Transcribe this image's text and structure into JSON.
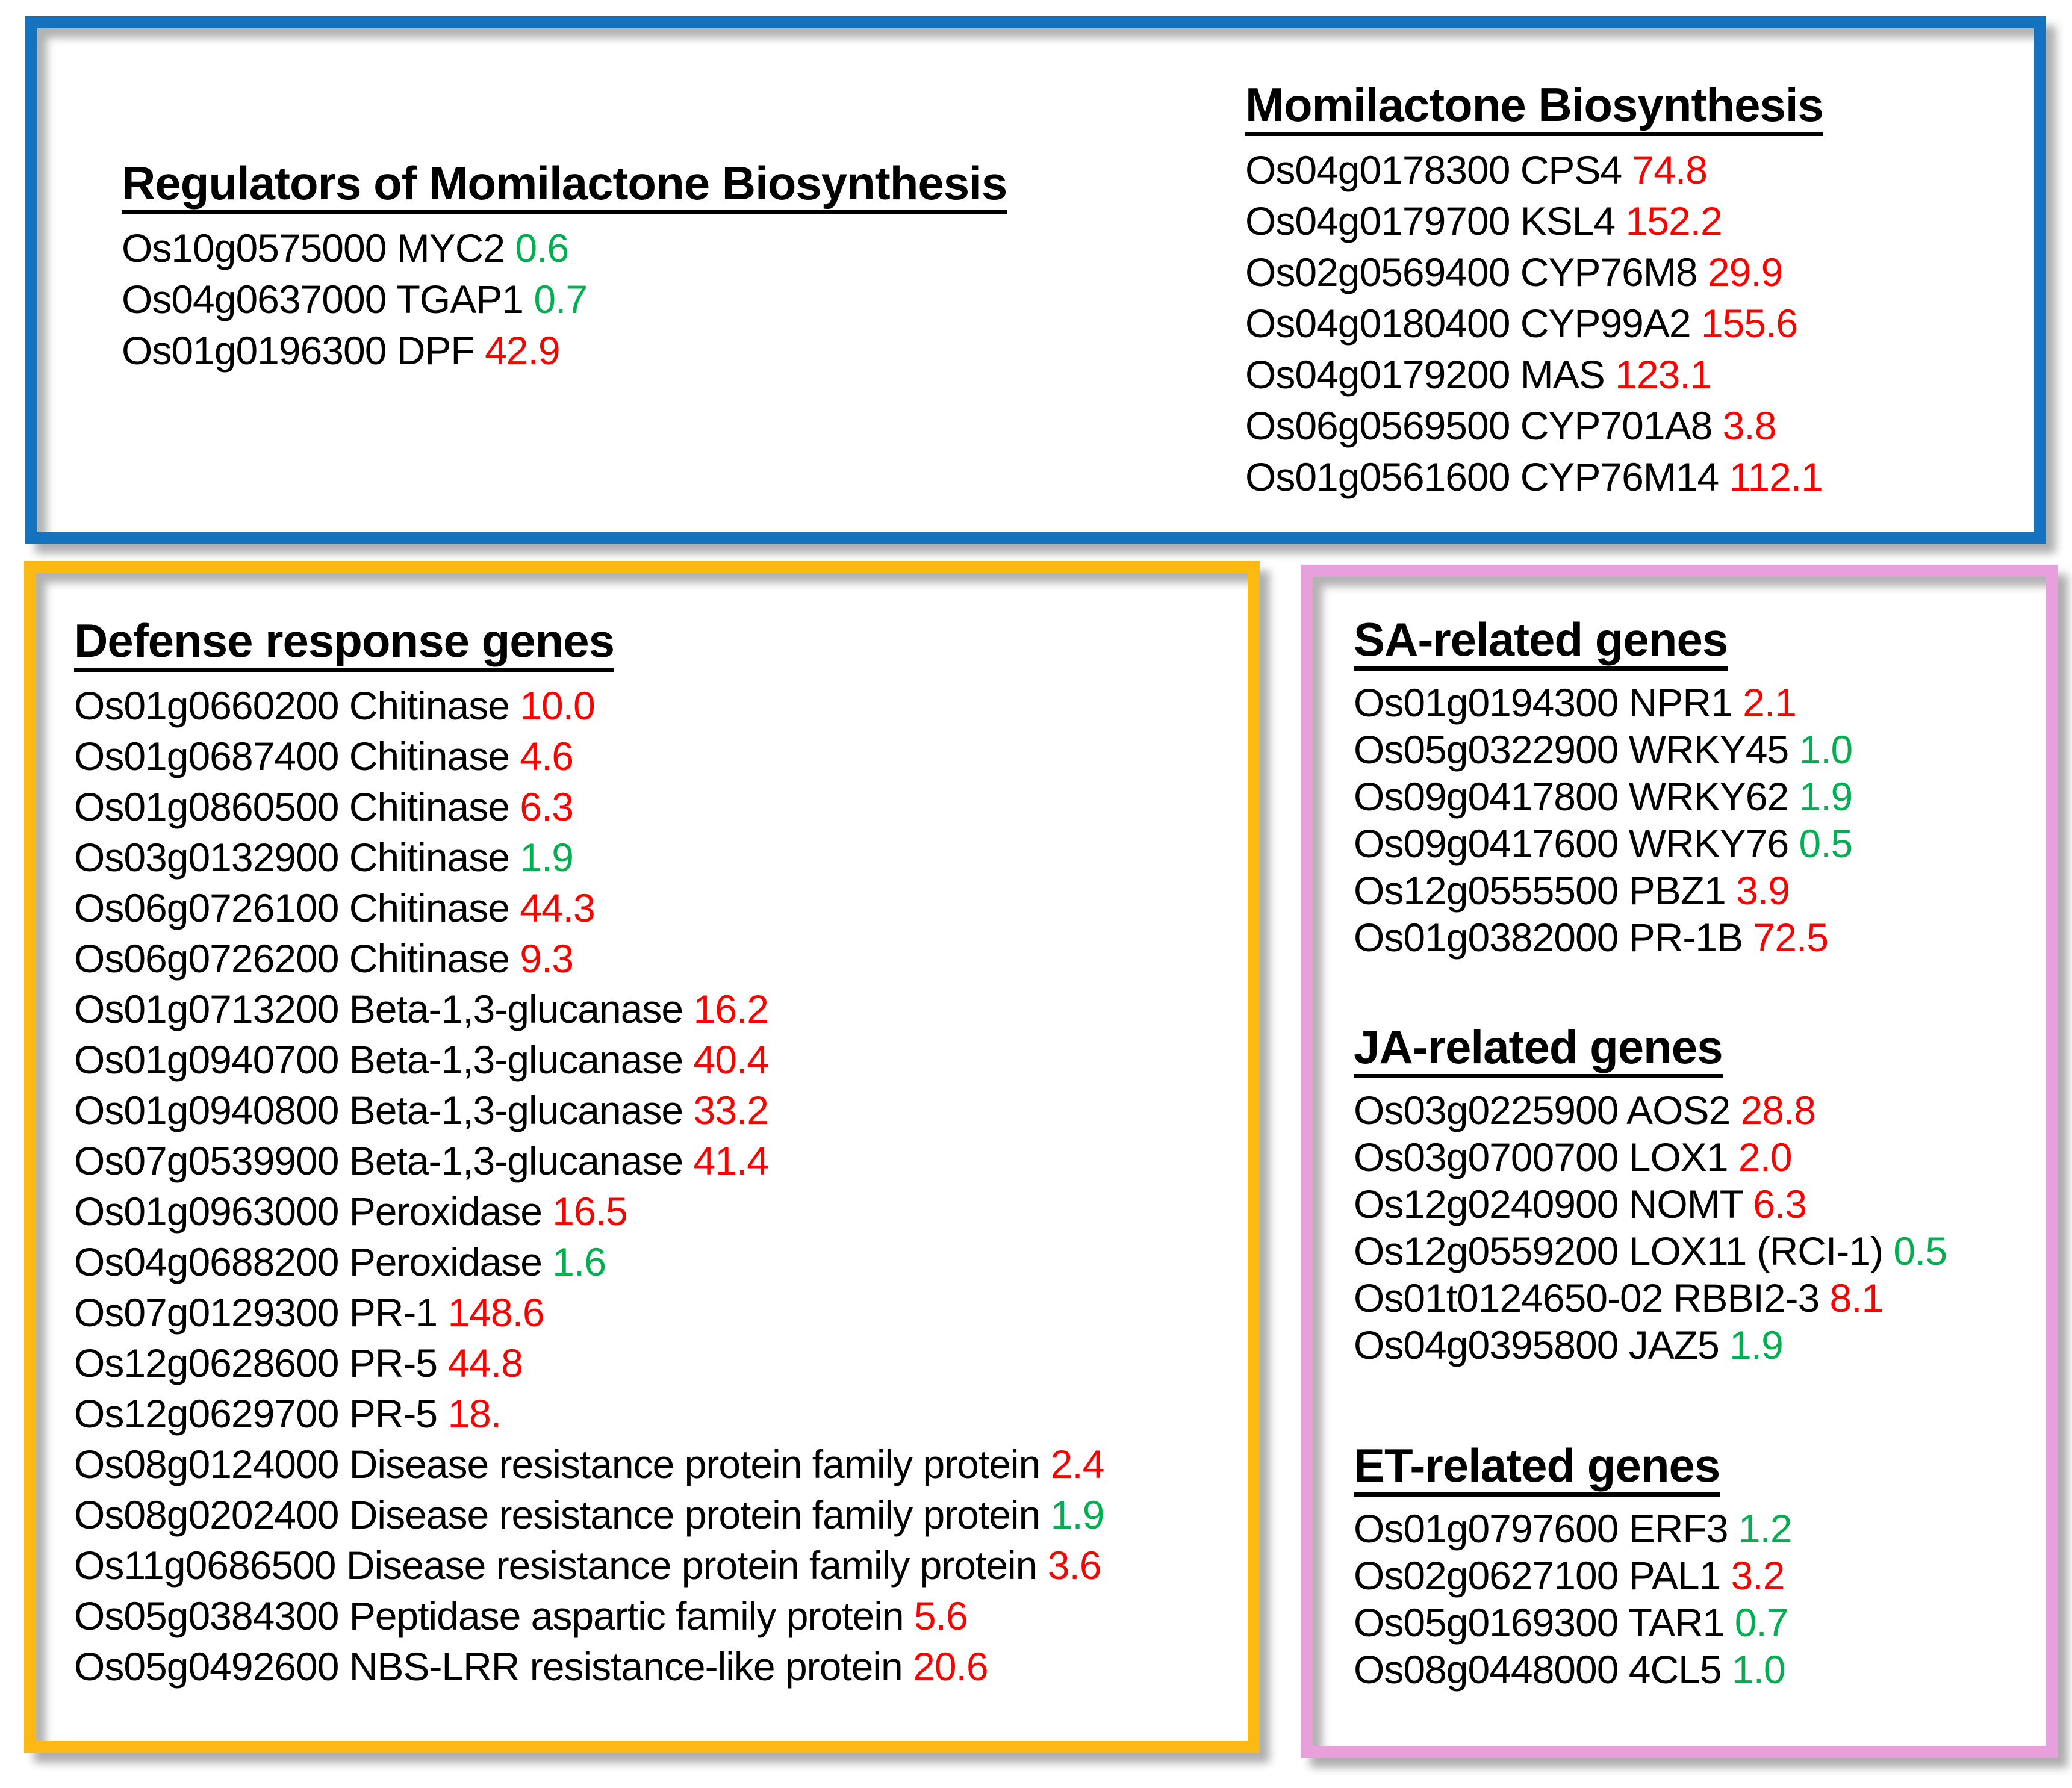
{
  "colors": {
    "up": "#FF0000",
    "down": "#00B050",
    "box-blue": "#1472BE",
    "box-orange": "#FDB913",
    "box-pink": "#E8A0DC"
  },
  "sections": {
    "regulators": {
      "title": "Regulators of Momilactone Biosynthesis",
      "genes": [
        {
          "id": "Os10g0575000",
          "name": "MYC2",
          "value": "0.6",
          "trend": "down"
        },
        {
          "id": "Os04g0637000",
          "name": "TGAP1",
          "value": "0.7",
          "trend": "down"
        },
        {
          "id": "Os01g0196300",
          "name": "DPF",
          "value": "42.9",
          "trend": "up"
        }
      ]
    },
    "biosynthesis": {
      "title": "Momilactone Biosynthesis",
      "genes": [
        {
          "id": "Os04g0178300",
          "name": "CPS4",
          "value": "74.8",
          "trend": "up"
        },
        {
          "id": "Os04g0179700",
          "name": "KSL4",
          "value": "152.2",
          "trend": "up"
        },
        {
          "id": "Os02g0569400",
          "name": "CYP76M8",
          "value": "29.9",
          "trend": "up"
        },
        {
          "id": "Os04g0180400",
          "name": "CYP99A2",
          "value": "155.6",
          "trend": "up"
        },
        {
          "id": "Os04g0179200",
          "name": "MAS",
          "value": "123.1",
          "trend": "up"
        },
        {
          "id": "Os06g0569500",
          "name": "CYP701A8",
          "value": "3.8",
          "trend": "up"
        },
        {
          "id": "Os01g0561600",
          "name": "CYP76M14",
          "value": "112.1",
          "trend": "up"
        }
      ]
    },
    "defense": {
      "title": "Defense response genes",
      "genes": [
        {
          "id": "Os01g0660200",
          "name": "Chitinase",
          "value": "10.0",
          "trend": "up"
        },
        {
          "id": "Os01g0687400",
          "name": "Chitinase",
          "value": "4.6",
          "trend": "up"
        },
        {
          "id": "Os01g0860500",
          "name": "Chitinase",
          "value": "6.3",
          "trend": "up"
        },
        {
          "id": "Os03g0132900",
          "name": "Chitinase",
          "value": "1.9",
          "trend": "down"
        },
        {
          "id": "Os06g0726100",
          "name": "Chitinase",
          "value": "44.3",
          "trend": "up"
        },
        {
          "id": "Os06g0726200",
          "name": "Chitinase",
          "value": "9.3",
          "trend": "up"
        },
        {
          "id": "Os01g0713200",
          "name": "Beta-1,3-glucanase",
          "value": "16.2",
          "trend": "up"
        },
        {
          "id": "Os01g0940700",
          "name": "Beta-1,3-glucanase",
          "value": "40.4",
          "trend": "up"
        },
        {
          "id": "Os01g0940800",
          "name": "Beta-1,3-glucanase",
          "value": "33.2",
          "trend": "up"
        },
        {
          "id": "Os07g0539900",
          "name": "Beta-1,3-glucanase",
          "value": "41.4",
          "trend": "up"
        },
        {
          "id": "Os01g0963000",
          "name": "Peroxidase",
          "value": "16.5",
          "trend": "up"
        },
        {
          "id": "Os04g0688200",
          "name": "Peroxidase",
          "value": "1.6",
          "trend": "down"
        },
        {
          "id": "Os07g0129300",
          "name": "PR-1",
          "value": "148.6",
          "trend": "up"
        },
        {
          "id": "Os12g0628600",
          "name": "PR-5",
          "value": "44.8",
          "trend": "up"
        },
        {
          "id": "Os12g0629700",
          "name": "PR-5",
          "value": "18.",
          "trend": "up"
        },
        {
          "id": "Os08g0124000",
          "name": "Disease resistance protein family protein",
          "value": "2.4",
          "trend": "up"
        },
        {
          "id": "Os08g0202400",
          "name": "Disease resistance protein family protein",
          "value": "1.9",
          "trend": "down"
        },
        {
          "id": "Os11g0686500",
          "name": "Disease resistance protein family protein",
          "value": "3.6",
          "trend": "up"
        },
        {
          "id": "Os05g0384300",
          "name": "Peptidase aspartic family protein",
          "value": "5.6",
          "trend": "up"
        },
        {
          "id": "Os05g0492600",
          "name": "NBS-LRR resistance-like protein",
          "value": "20.6",
          "trend": "up"
        }
      ]
    },
    "sa": {
      "title": "SA-related genes",
      "genes": [
        {
          "id": "Os01g0194300",
          "name": "NPR1",
          "value": "2.1",
          "trend": "up"
        },
        {
          "id": "Os05g0322900",
          "name": "WRKY45",
          "value": "1.0",
          "trend": "down"
        },
        {
          "id": "Os09g0417800",
          "name": "WRKY62",
          "value": "1.9",
          "trend": "down"
        },
        {
          "id": "Os09g0417600",
          "name": "WRKY76",
          "value": "0.5",
          "trend": "down"
        },
        {
          "id": "Os12g0555500",
          "name": "PBZ1",
          "value": "3.9",
          "trend": "up"
        },
        {
          "id": "Os01g0382000",
          "name": "PR-1B",
          "value": "72.5",
          "trend": "up"
        }
      ]
    },
    "ja": {
      "title": "JA-related genes",
      "genes": [
        {
          "id": "Os03g0225900",
          "name": "AOS2",
          "value": "28.8",
          "trend": "up"
        },
        {
          "id": "Os03g0700700",
          "name": "LOX1",
          "value": "2.0",
          "trend": "up"
        },
        {
          "id": "Os12g0240900",
          "name": "NOMT",
          "value": "6.3",
          "trend": "up"
        },
        {
          "id": "Os12g0559200",
          "name": "LOX11 (RCI-1)",
          "value": "0.5",
          "trend": "down"
        },
        {
          "id": "Os01t0124650-02",
          "name": "RBBI2-3",
          "value": "8.1",
          "trend": "up"
        },
        {
          "id": "Os04g0395800",
          "name": "JAZ5",
          "value": "1.9",
          "trend": "down"
        }
      ]
    },
    "et": {
      "title": "ET-related genes",
      "genes": [
        {
          "id": "Os01g0797600",
          "name": "ERF3",
          "value": "1.2",
          "trend": "down"
        },
        {
          "id": "Os02g0627100",
          "name": "PAL1",
          "value": "3.2",
          "trend": "up"
        },
        {
          "id": "Os05g0169300",
          "name": "TAR1",
          "value": "0.7",
          "trend": "down"
        },
        {
          "id": "Os08g0448000",
          "name": "4CL5",
          "value": "1.0",
          "trend": "down"
        }
      ]
    }
  }
}
